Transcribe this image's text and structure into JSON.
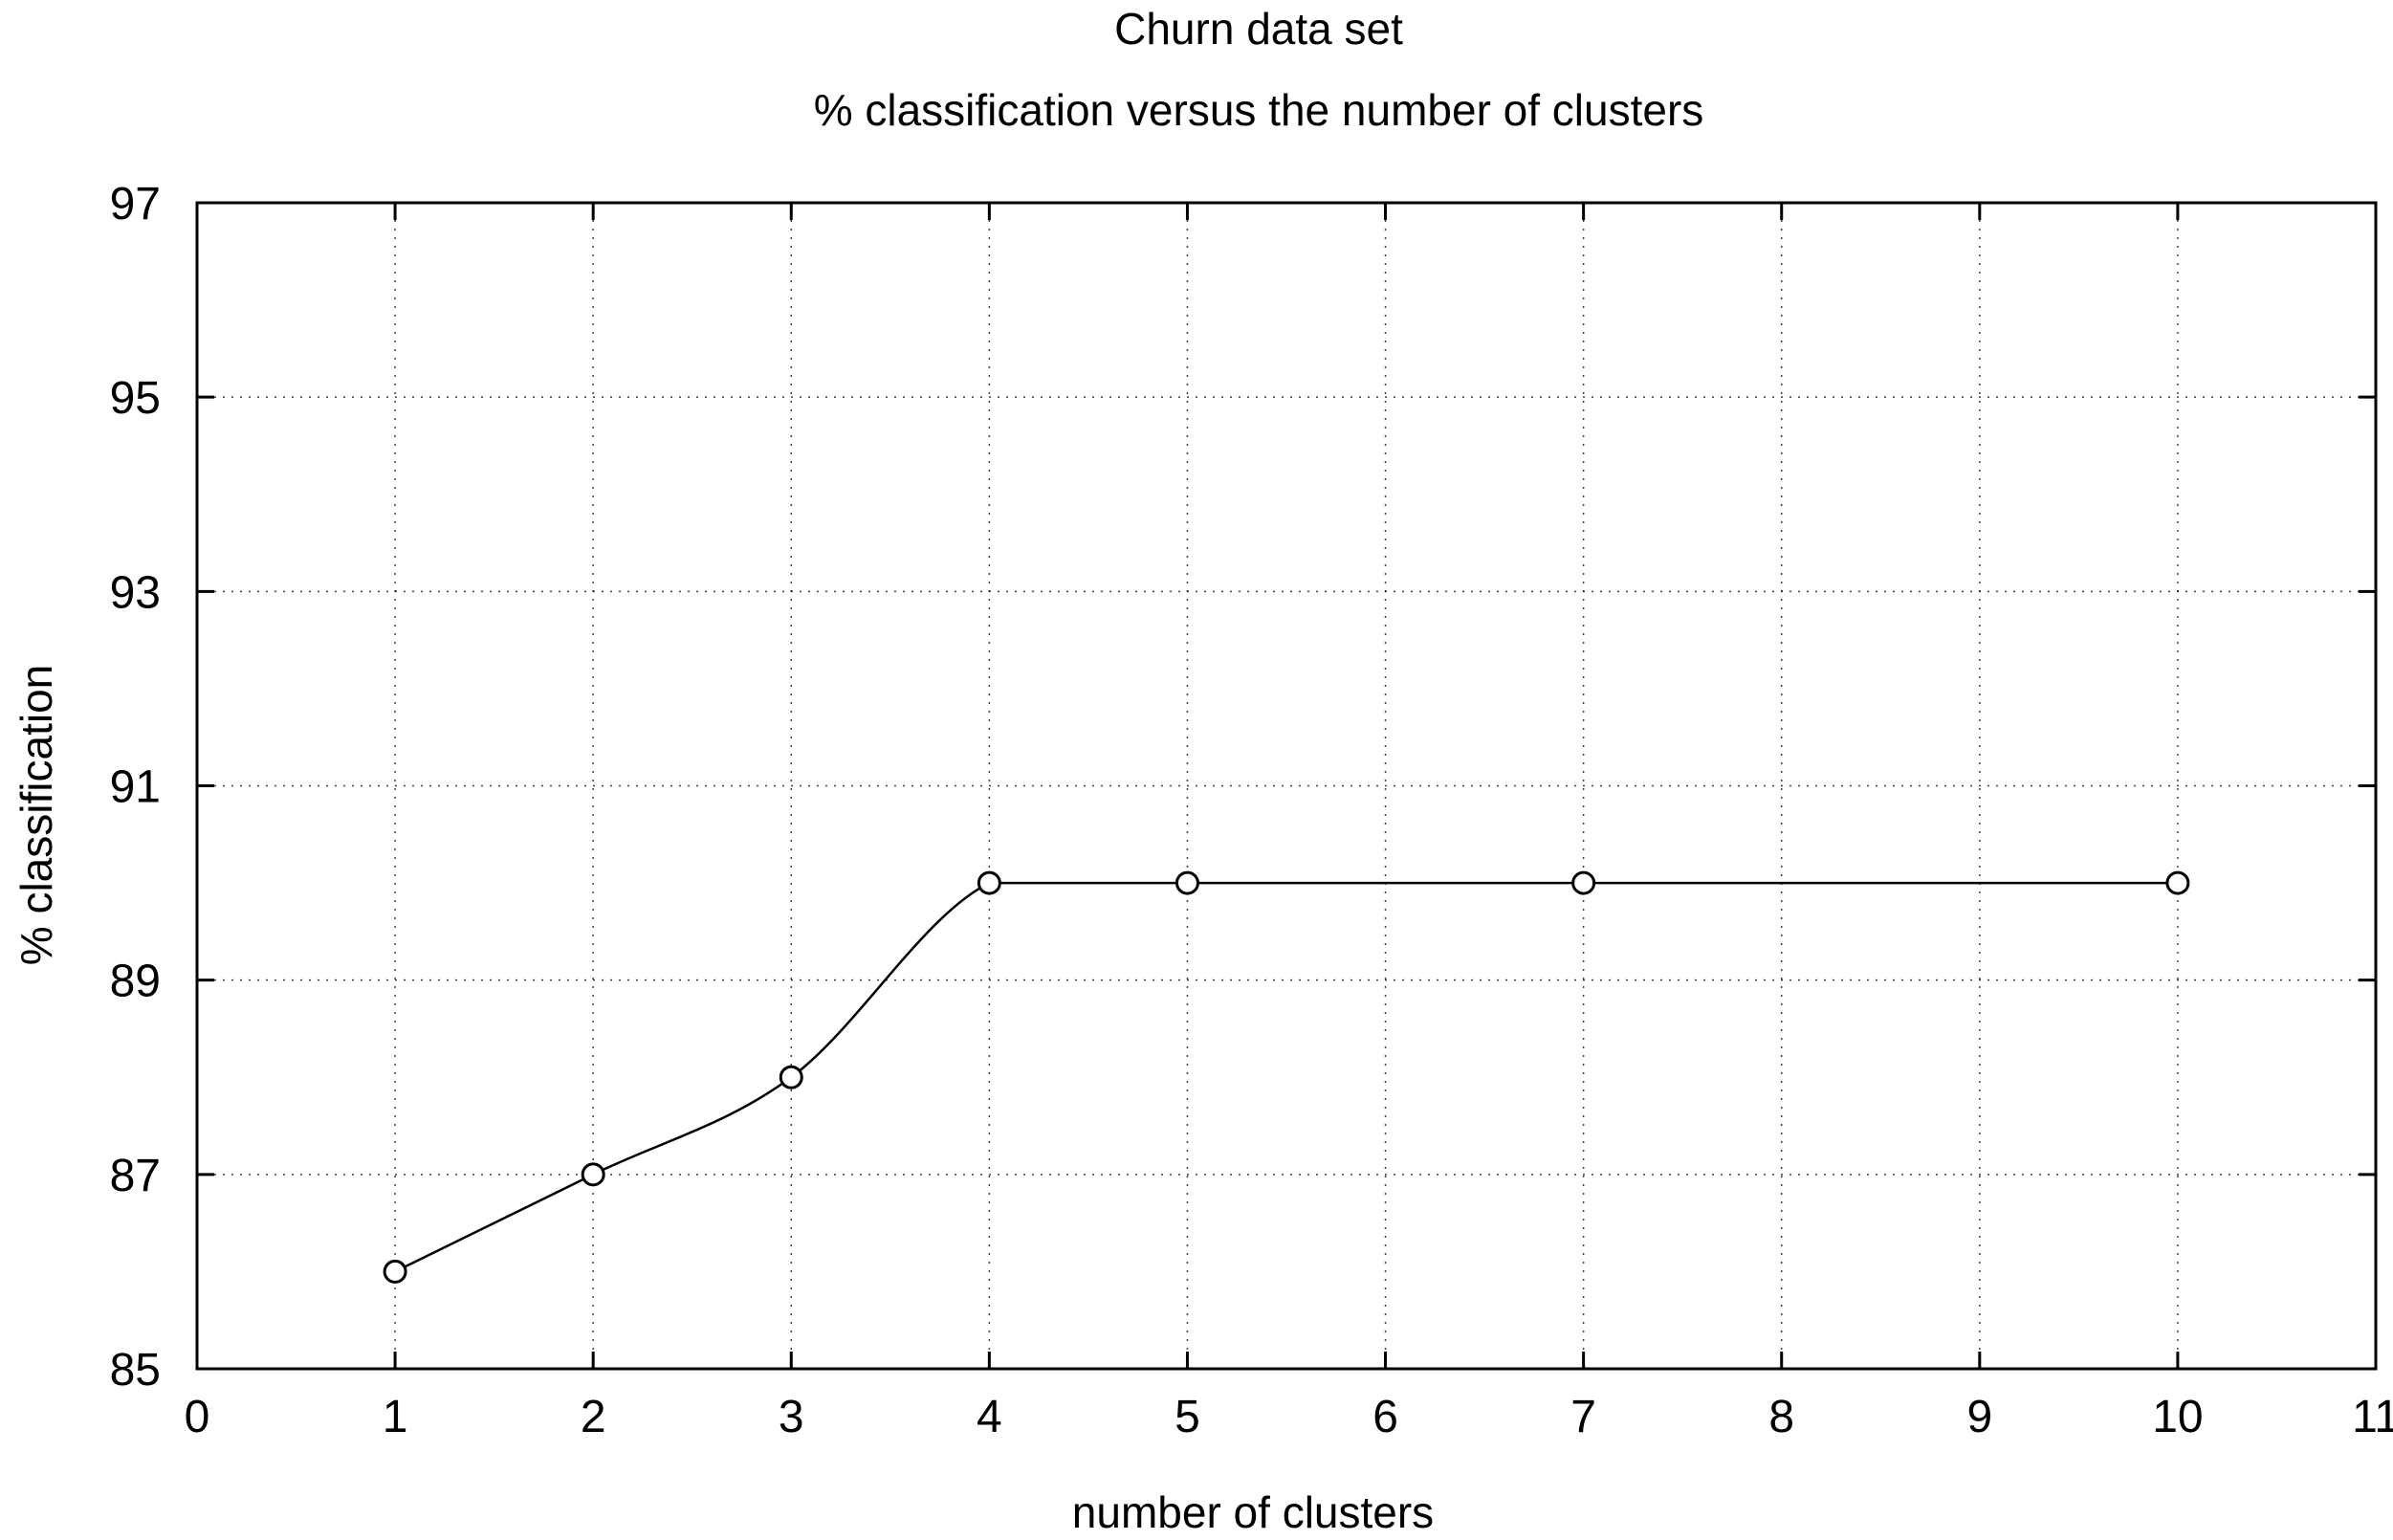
{
  "chart_data": {
    "type": "line",
    "title": "Churn data set",
    "subtitle": "% classification versus the number of clusters",
    "xlabel": "number of clusters",
    "ylabel": "% classification",
    "xlim": [
      0,
      11
    ],
    "ylim": [
      85,
      97
    ],
    "xticks": [
      0,
      1,
      2,
      3,
      4,
      5,
      6,
      7,
      8,
      9,
      10,
      11
    ],
    "yticks": [
      85,
      87,
      89,
      91,
      93,
      95,
      97
    ],
    "grid": true,
    "legend": "none",
    "series": [
      {
        "x": [
          1,
          2,
          3,
          4,
          5,
          7,
          10
        ],
        "y": [
          86,
          87,
          88,
          90,
          90,
          90,
          90
        ]
      }
    ],
    "marker": "open-circle",
    "line_style": "smooth",
    "colors": {
      "line": "#000000",
      "grid": "#000000",
      "background": "#ffffff"
    }
  }
}
